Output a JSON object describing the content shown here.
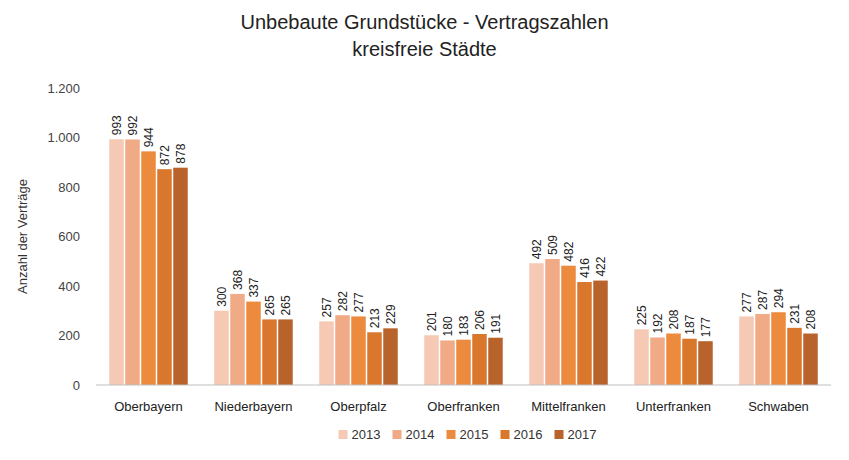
{
  "chart_data": {
    "type": "bar",
    "title": "Unbebaute Grundstücke - Vertragszahlen",
    "subtitle": "kreisfreie Städte",
    "y_label": "Anzahl der Verträge",
    "categories": [
      "Oberbayern",
      "Niederbayern",
      "Oberpfalz",
      "Oberfranken",
      "Mittelfranken",
      "Unterfranken",
      "Schwaben"
    ],
    "series": [
      {
        "name": "2013",
        "color": "#f5c9b3",
        "values": [
          993,
          300,
          257,
          201,
          492,
          225,
          277
        ]
      },
      {
        "name": "2014",
        "color": "#f1aa86",
        "values": [
          992,
          368,
          282,
          180,
          509,
          192,
          287
        ]
      },
      {
        "name": "2015",
        "color": "#ec8a3e",
        "values": [
          944,
          337,
          277,
          183,
          482,
          208,
          294
        ]
      },
      {
        "name": "2016",
        "color": "#d9772d",
        "values": [
          872,
          265,
          213,
          206,
          416,
          187,
          231
        ]
      },
      {
        "name": "2017",
        "color": "#b9632c",
        "values": [
          878,
          265,
          229,
          191,
          422,
          177,
          208
        ]
      }
    ],
    "ylim": [
      0,
      1200
    ],
    "yticks": [
      0,
      200,
      400,
      600,
      800,
      {
        "value": 1000,
        "label": "1.000"
      },
      {
        "value": 1200,
        "label": "1.200"
      }
    ],
    "grid": false,
    "legend": "bottom",
    "data_labels": true
  }
}
